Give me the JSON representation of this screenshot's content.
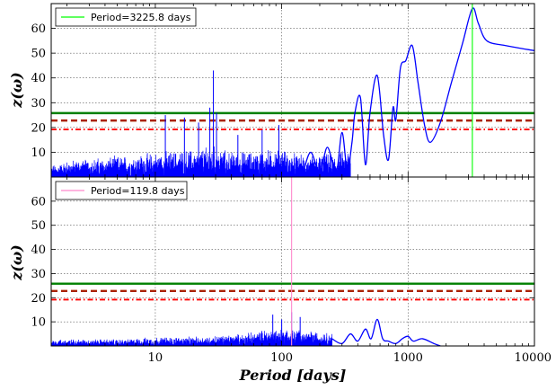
{
  "chart_data": [
    {
      "type": "line",
      "panel": "top",
      "xscale": "log",
      "xlim": [
        1.5,
        10000
      ],
      "ylim": [
        0,
        70
      ],
      "ylabel": "z(ω)",
      "xlabel": "",
      "grid": true,
      "yticks": [
        "10",
        "20",
        "30",
        "40",
        "50",
        "60"
      ],
      "legend": {
        "location": "top-left",
        "label": "Period=3225.8 days",
        "color": "#00ff00"
      },
      "peak_period": 3225.8,
      "thresholds": [
        {
          "value": 25.8,
          "style": "solid",
          "color": "#008000"
        },
        {
          "value": 22.8,
          "style": "dashed",
          "color": "#aa2200"
        },
        {
          "value": 19.2,
          "style": "dashdot",
          "color": "#ff0000"
        }
      ],
      "series_color": "#0000ff",
      "envelope": [
        [
          1.5,
          5
        ],
        [
          2,
          7
        ],
        [
          3,
          8
        ],
        [
          5,
          9
        ],
        [
          8,
          10
        ],
        [
          12,
          11
        ],
        [
          20,
          12
        ],
        [
          25,
          13
        ],
        [
          28,
          14
        ],
        [
          32,
          12
        ],
        [
          40,
          11
        ],
        [
          60,
          11
        ],
        [
          80,
          12
        ],
        [
          100,
          12
        ],
        [
          150,
          9
        ],
        [
          250,
          10
        ],
        [
          350,
          12
        ]
      ],
      "spikes": [
        [
          12,
          25
        ],
        [
          17,
          24
        ],
        [
          22,
          22
        ],
        [
          27,
          28
        ],
        [
          28.8,
          43
        ],
        [
          30.5,
          26
        ],
        [
          45,
          17
        ],
        [
          70,
          19
        ],
        [
          95,
          21
        ]
      ],
      "smooth": [
        [
          150,
          3
        ],
        [
          170,
          10
        ],
        [
          200,
          2
        ],
        [
          230,
          12
        ],
        [
          270,
          2
        ],
        [
          300,
          18
        ],
        [
          330,
          3
        ],
        [
          360,
          14
        ],
        [
          380,
          26
        ],
        [
          420,
          32
        ],
        [
          460,
          5
        ],
        [
          500,
          26
        ],
        [
          570,
          41
        ],
        [
          640,
          17
        ],
        [
          700,
          7
        ],
        [
          760,
          28
        ],
        [
          800,
          23
        ],
        [
          870,
          44
        ],
        [
          960,
          47
        ],
        [
          1080,
          53
        ],
        [
          1200,
          38
        ],
        [
          1350,
          21
        ],
        [
          1500,
          14
        ],
        [
          1800,
          22
        ],
        [
          2200,
          38
        ],
        [
          2700,
          54
        ],
        [
          3225.8,
          68
        ],
        [
          3600,
          62
        ],
        [
          4200,
          55
        ],
        [
          6000,
          53
        ],
        [
          10000,
          51
        ]
      ]
    },
    {
      "type": "line",
      "panel": "bottom",
      "xscale": "log",
      "xlim": [
        1.5,
        10000
      ],
      "ylim": [
        0,
        70
      ],
      "ylabel": "z(ω)",
      "xlabel": "Period [days]",
      "grid": true,
      "xticks": [
        10,
        100,
        1000,
        10000
      ],
      "xticklabels": [
        "10",
        "100",
        "1000",
        "10000"
      ],
      "yticks": [
        "10",
        "20",
        "30",
        "40",
        "50",
        "60"
      ],
      "legend": {
        "location": "top-left",
        "label": "Period=119.8 days",
        "color": "#ff88cc"
      },
      "peak_period": 119.8,
      "thresholds": [
        {
          "value": 25.8,
          "style": "solid",
          "color": "#008000"
        },
        {
          "value": 22.8,
          "style": "dashed",
          "color": "#aa2200"
        },
        {
          "value": 19.2,
          "style": "dashdot",
          "color": "#ff0000"
        }
      ],
      "series_color": "#0000ff",
      "envelope": [
        [
          1.5,
          3
        ],
        [
          3,
          3
        ],
        [
          6,
          3
        ],
        [
          10,
          4
        ],
        [
          20,
          4
        ],
        [
          40,
          5
        ],
        [
          60,
          6
        ],
        [
          80,
          8
        ],
        [
          100,
          8
        ],
        [
          150,
          7
        ],
        [
          250,
          6
        ]
      ],
      "spikes": [
        [
          85,
          13
        ],
        [
          100,
          11
        ],
        [
          119.8,
          14
        ],
        [
          140,
          12
        ]
      ],
      "smooth": [
        [
          250,
          3
        ],
        [
          300,
          1
        ],
        [
          350,
          5
        ],
        [
          400,
          2
        ],
        [
          460,
          7
        ],
        [
          510,
          3
        ],
        [
          570,
          11
        ],
        [
          630,
          3
        ],
        [
          700,
          2
        ],
        [
          800,
          1
        ],
        [
          900,
          3
        ],
        [
          1000,
          4
        ],
        [
          1100,
          2
        ],
        [
          1300,
          3
        ],
        [
          1600,
          1
        ],
        [
          1800,
          0
        ]
      ]
    }
  ]
}
